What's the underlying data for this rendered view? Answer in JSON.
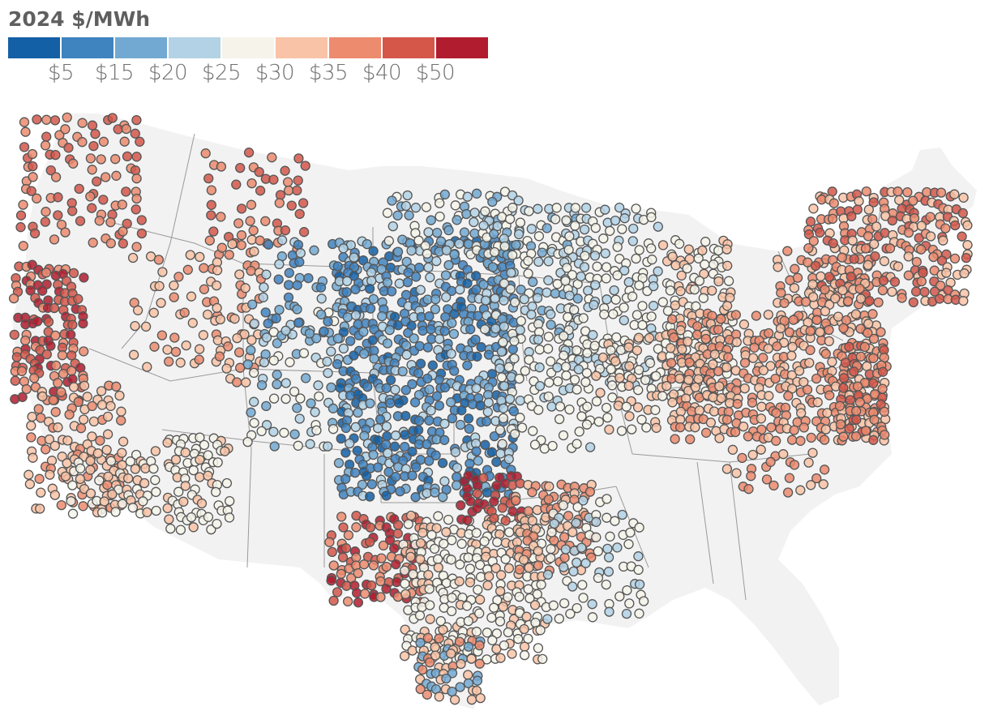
{
  "legend": {
    "title": "2024 $/MWh",
    "colors": [
      "#1360a6",
      "#3f83bf",
      "#72a9d2",
      "#b3d2e5",
      "#f6f4ea",
      "#f8c3a6",
      "#ec8b6e",
      "#d4574a",
      "#b11c2e"
    ],
    "labels": [
      "$5",
      "$15",
      "$20",
      "$25",
      "$30",
      "$35",
      "$40",
      "$50"
    ]
  },
  "map": {
    "land_color": "#f2f2f2",
    "border_color": "#9a9a9a",
    "marker_outline": "#555555"
  }
}
